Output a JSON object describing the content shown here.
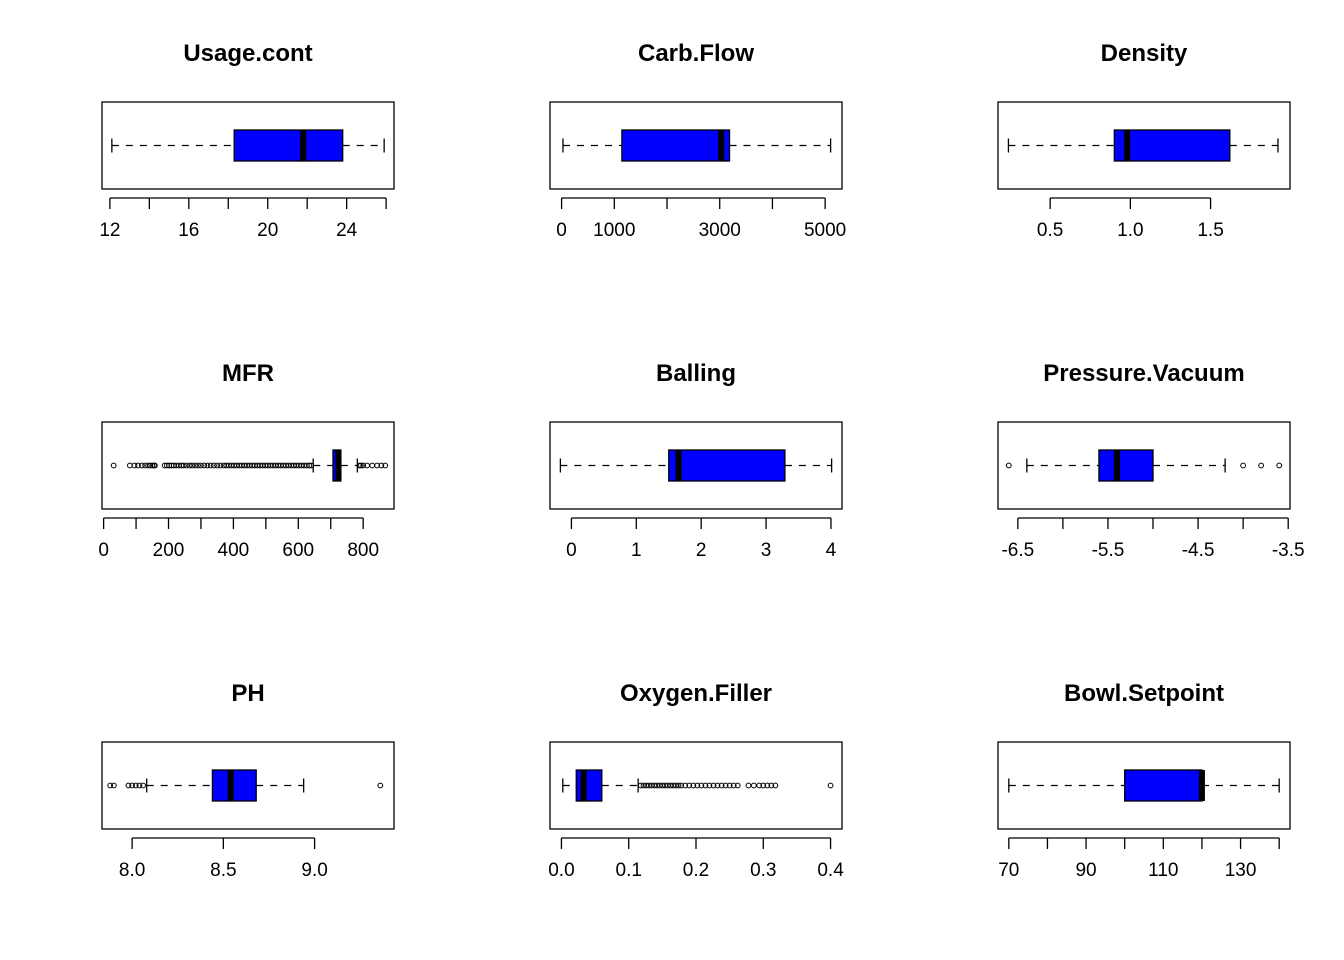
{
  "figure": {
    "background": "#ffffff",
    "box_fill": "#0000ff"
  },
  "chart_data": [
    {
      "type": "boxplot",
      "orientation": "horizontal",
      "title": "Usage.cont",
      "xlim": [
        11.6,
        26.4
      ],
      "ticks": [
        12,
        14,
        16,
        18,
        20,
        22,
        24,
        26
      ],
      "tick_labels": [
        "12",
        "16",
        "20",
        "24"
      ],
      "tick_label_values": [
        12,
        16,
        20,
        24
      ],
      "stats": {
        "whisker_low": 12.1,
        "q1": 18.3,
        "median": 21.8,
        "q3": 23.8,
        "whisker_high": 25.9
      },
      "outliers": []
    },
    {
      "type": "boxplot",
      "orientation": "horizontal",
      "title": "Carb.Flow",
      "xlim": [
        -220,
        5320
      ],
      "ticks": [
        0,
        1000,
        2000,
        3000,
        4000,
        5000
      ],
      "tick_labels": [
        "0",
        "1000",
        "3000",
        "5000"
      ],
      "tick_label_values": [
        0,
        1000,
        3000,
        5000
      ],
      "stats": {
        "whisker_low": 26,
        "q1": 1144,
        "median": 3028,
        "q3": 3186,
        "whisker_high": 5104
      },
      "outliers": []
    },
    {
      "type": "boxplot",
      "orientation": "horizontal",
      "title": "Density",
      "xlim": [
        0.175,
        1.995
      ],
      "ticks": [
        0.5,
        1.0,
        1.5
      ],
      "tick_labels": [
        "0.5",
        "1.0",
        "1.5"
      ],
      "tick_label_values": [
        0.5,
        1.0,
        1.5
      ],
      "stats": {
        "whisker_low": 0.24,
        "q1": 0.9,
        "median": 0.98,
        "q3": 1.62,
        "whisker_high": 1.92
      },
      "outliers": []
    },
    {
      "type": "boxplot",
      "orientation": "horizontal",
      "title": "MFR",
      "xlim": [
        -5,
        895
      ],
      "ticks": [
        0,
        100,
        200,
        300,
        400,
        500,
        600,
        700,
        800
      ],
      "tick_labels": [
        "0",
        "200",
        "400",
        "600",
        "800"
      ],
      "tick_label_values": [
        0,
        200,
        400,
        600,
        800
      ],
      "stats": {
        "whisker_low": 646,
        "q1": 707,
        "median": 724,
        "q3": 731,
        "whisker_high": 782
      },
      "outliers": [
        31,
        81,
        95,
        106,
        118,
        128,
        137,
        144,
        150,
        155,
        158,
        188,
        195,
        202,
        209,
        216,
        224,
        232,
        240,
        247,
        256,
        265,
        273,
        282,
        291,
        300,
        310,
        320,
        330,
        340,
        350,
        360,
        370,
        378,
        386,
        394,
        402,
        410,
        418,
        426,
        434,
        442,
        450,
        458,
        466,
        474,
        482,
        490,
        498,
        506,
        514,
        522,
        530,
        538,
        546,
        554,
        562,
        570,
        578,
        586,
        594,
        602,
        610,
        618,
        626,
        634,
        640,
        789,
        793,
        800,
        812,
        828,
        843,
        856,
        868
      ]
    },
    {
      "type": "boxplot",
      "orientation": "horizontal",
      "title": "Balling",
      "xlim": [
        -0.33,
        4.17
      ],
      "ticks": [
        0,
        1,
        2,
        3,
        4
      ],
      "tick_labels": [
        "0",
        "1",
        "2",
        "3",
        "4"
      ],
      "tick_label_values": [
        0,
        1,
        2,
        3,
        4
      ],
      "stats": {
        "whisker_low": -0.17,
        "q1": 1.5,
        "median": 1.65,
        "q3": 3.29,
        "whisker_high": 4.01
      },
      "outliers": []
    },
    {
      "type": "boxplot",
      "orientation": "horizontal",
      "title": "Pressure.Vacuum",
      "xlim": [
        -6.72,
        -3.48
      ],
      "ticks": [
        -6.5,
        -6.0,
        -5.5,
        -5.0,
        -4.5,
        -4.0,
        -3.5
      ],
      "tick_labels": [
        "-6.5",
        "-5.5",
        "-4.5",
        "-3.5"
      ],
      "tick_label_values": [
        -6.5,
        -5.5,
        -4.5,
        -3.5
      ],
      "stats": {
        "whisker_low": -6.4,
        "q1": -5.6,
        "median": -5.4,
        "q3": -5.0,
        "whisker_high": -4.2
      },
      "outliers": [
        -6.6,
        -4.0,
        -3.8,
        -3.6
      ]
    },
    {
      "type": "boxplot",
      "orientation": "horizontal",
      "title": "PH",
      "xlim": [
        7.835,
        9.435
      ],
      "ticks": [
        8.0,
        8.5,
        9.0
      ],
      "tick_labels": [
        "8.0",
        "8.5",
        "9.0"
      ],
      "tick_label_values": [
        8.0,
        8.5,
        9.0
      ],
      "stats": {
        "whisker_low": 8.08,
        "q1": 8.44,
        "median": 8.54,
        "q3": 8.68,
        "whisker_high": 8.94
      },
      "outliers": [
        7.88,
        7.9,
        7.98,
        8.0,
        8.02,
        8.04,
        8.06,
        9.36
      ]
    },
    {
      "type": "boxplot",
      "orientation": "horizontal",
      "title": "Oxygen.Filler",
      "xlim": [
        -0.017,
        0.417
      ],
      "ticks": [
        0.0,
        0.1,
        0.2,
        0.3,
        0.4
      ],
      "tick_labels": [
        "0.0",
        "0.1",
        "0.2",
        "0.3",
        "0.4"
      ],
      "tick_label_values": [
        0.0,
        0.1,
        0.2,
        0.3,
        0.4
      ],
      "stats": {
        "whisker_low": 0.002,
        "q1": 0.022,
        "median": 0.033,
        "q3": 0.06,
        "whisker_high": 0.114
      },
      "outliers": [
        0.118,
        0.122,
        0.126,
        0.13,
        0.134,
        0.138,
        0.142,
        0.146,
        0.15,
        0.154,
        0.158,
        0.162,
        0.166,
        0.17,
        0.174,
        0.178,
        0.184,
        0.19,
        0.196,
        0.202,
        0.208,
        0.214,
        0.22,
        0.226,
        0.232,
        0.238,
        0.244,
        0.25,
        0.256,
        0.262,
        0.278,
        0.286,
        0.294,
        0.3,
        0.306,
        0.312,
        0.318,
        0.4
      ]
    },
    {
      "type": "boxplot",
      "orientation": "horizontal",
      "title": "Bowl.Setpoint",
      "xlim": [
        67.2,
        142.8
      ],
      "ticks": [
        70,
        80,
        90,
        100,
        110,
        120,
        130,
        140
      ],
      "tick_labels": [
        "70",
        "90",
        "110",
        "130"
      ],
      "tick_label_values": [
        70,
        90,
        110,
        130
      ],
      "stats": {
        "whisker_low": 70,
        "q1": 100,
        "median": 120,
        "q3": 120,
        "whisker_high": 140
      },
      "outliers": []
    }
  ]
}
